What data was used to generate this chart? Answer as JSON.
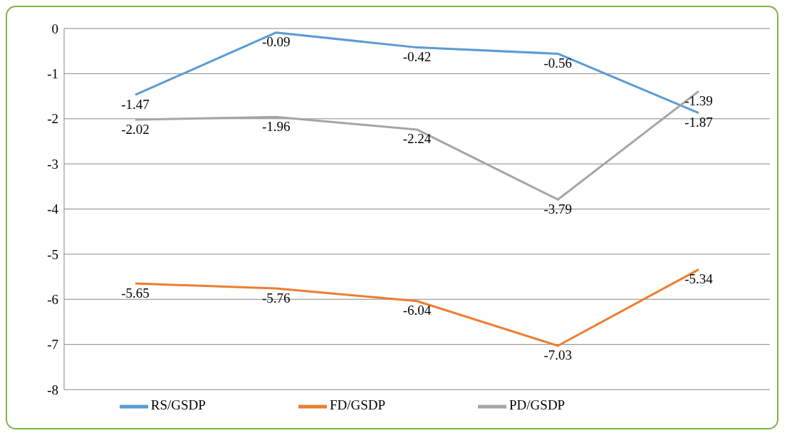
{
  "chart_data": {
    "type": "line",
    "categories": [
      null,
      null,
      null,
      null,
      null
    ],
    "series": [
      {
        "name": "RS/GSDP",
        "color": "#5b9bd5",
        "values": [
          -1.47,
          -0.09,
          -0.42,
          -0.56,
          -1.87
        ]
      },
      {
        "name": "FD/GSDP",
        "color": "#ed7d31",
        "values": [
          -5.65,
          -5.76,
          -6.04,
          -7.03,
          -5.34
        ]
      },
      {
        "name": "PD/GSDP",
        "color": "#a5a5a5",
        "values": [
          -2.02,
          -1.96,
          -2.24,
          -3.79,
          -1.39
        ]
      }
    ],
    "ylim": [
      -8,
      0
    ],
    "yticks": [
      -8,
      -7,
      -6,
      -5,
      -4,
      -3,
      -2,
      -1,
      0
    ],
    "grid": "y",
    "legend": "bottom",
    "tick_labels": "y",
    "marker": "none",
    "line_style": "solid",
    "data_labels": true
  }
}
